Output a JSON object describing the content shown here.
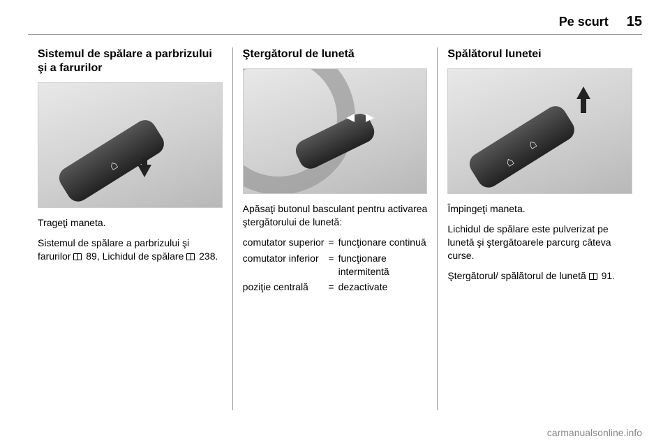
{
  "header": {
    "section_title": "Pe scurt",
    "page_number": "15"
  },
  "col1": {
    "title": "Sistemul de spălare a parbrizului şi a farurilor",
    "p1": "Trageţi maneta.",
    "p2_pre": "Sistemul de spălare a parbrizului şi farurilor ",
    "ref1": "89",
    "p2_mid": ", Lichidul de spălare ",
    "ref2": "238",
    "p2_post": "."
  },
  "col2": {
    "title": "Ştergătorul de lunetă",
    "p1": "Apăsaţi butonul basculant pentru activarea ştergătorului de lunetă:",
    "rows": [
      {
        "term": "comutator superior",
        "def": "funcţionare continuă"
      },
      {
        "term": "comutator inferior",
        "def": "funcţionare intermitentă"
      },
      {
        "term": "poziţie centrală",
        "def": "dezactivate"
      }
    ]
  },
  "col3": {
    "title": "Spălătorul lunetei",
    "p1": "Împingeţi maneta.",
    "p2": "Lichidul de spălare este pulverizat pe lunetă şi ştergătoarele parcurg câteva curse.",
    "p3_pre": "Ştergătorul/ spălătorul de lunetă ",
    "ref1": "91",
    "p3_post": "."
  },
  "footer": {
    "text": "carmanualsonline.info"
  }
}
